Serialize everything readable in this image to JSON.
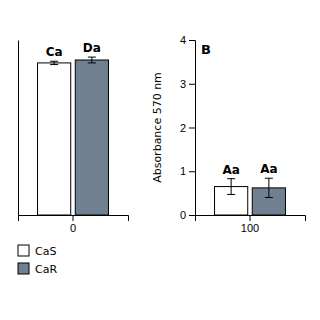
{
  "chart_data": [
    {
      "type": "bar",
      "categories": [
        "0"
      ],
      "series": [
        {
          "name": "CaS",
          "color": "#ffffff",
          "values": [
            3.65
          ],
          "errors": [
            0.04
          ],
          "labels": [
            "Ca"
          ]
        },
        {
          "name": "CaR",
          "color": "#708090",
          "values": [
            3.72
          ],
          "errors": [
            0.07
          ],
          "labels": [
            "Da"
          ]
        }
      ],
      "ylim": [
        0,
        4.2
      ],
      "tick_labels": "x",
      "legend": "bottom"
    },
    {
      "type": "bar",
      "title": "B",
      "categories": [
        "100"
      ],
      "series": [
        {
          "color": "#ffffff",
          "values": [
            0.65
          ],
          "errors": [
            0.18
          ],
          "labels": [
            "Aa"
          ]
        },
        {
          "color": "#708090",
          "values": [
            0.62
          ],
          "errors": [
            0.22
          ],
          "labels": [
            "Aa"
          ]
        }
      ],
      "ylabel": "Absorbance 570 nm",
      "ylim": [
        0,
        4
      ],
      "yticks": [
        0,
        1,
        2,
        3,
        4
      ]
    }
  ]
}
